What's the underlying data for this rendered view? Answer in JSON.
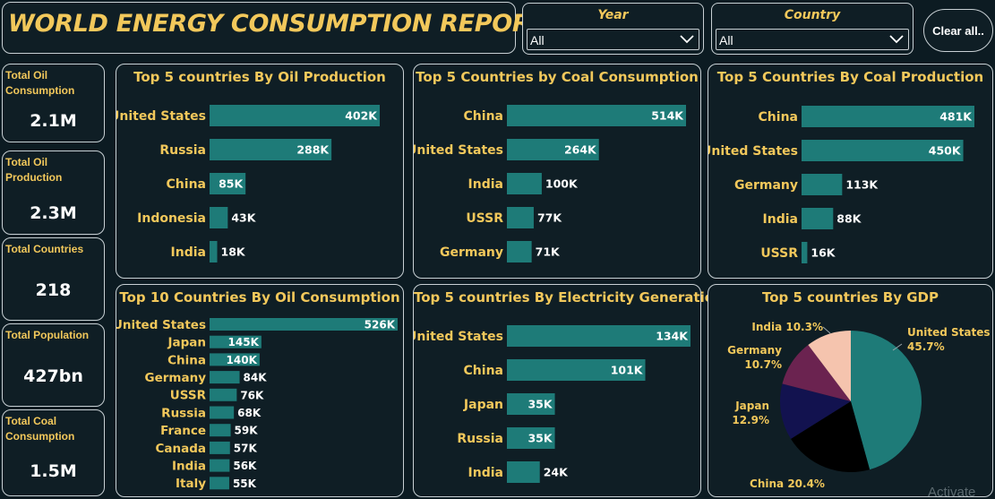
{
  "header": {
    "title": "WORLD ENERGY CONSUMPTION REPORT"
  },
  "filters": {
    "year": {
      "label": "Year",
      "value": "All"
    },
    "country": {
      "label": "Country",
      "value": "All"
    },
    "clear_label": "Clear all.."
  },
  "kpis": [
    {
      "label": "Total Oil Consumption",
      "value": "2.1M"
    },
    {
      "label": "Total Oil Production",
      "value": "2.3M"
    },
    {
      "label": "Total Countries",
      "value": "218"
    },
    {
      "label": "Total Population",
      "value": "427bn"
    },
    {
      "label": "Total Coal Consumption",
      "value": "1.5M"
    }
  ],
  "colors": {
    "bar": "#1e7b78",
    "accent": "#f2c85b",
    "card_border": "#c8d0d4"
  },
  "watermark": "Activate",
  "chart_data": [
    {
      "type": "bar",
      "title": "Top 5 countries By Oil Production",
      "categories": [
        "United States",
        "Russia",
        "China",
        "Indonesia",
        "India"
      ],
      "values": [
        402,
        288,
        85,
        43,
        18
      ],
      "labels": [
        "402K",
        "288K",
        "85K",
        "43K",
        "18K"
      ],
      "max": 402
    },
    {
      "type": "bar",
      "title": "Top 5 Countries by Coal Consumption",
      "categories": [
        "China",
        "United States",
        "India",
        "USSR",
        "Germany"
      ],
      "values": [
        514,
        264,
        100,
        77,
        71
      ],
      "labels": [
        "514K",
        "264K",
        "100K",
        "77K",
        "71K"
      ],
      "max": 514
    },
    {
      "type": "bar",
      "title": "Top 5 Countries By Coal Production",
      "categories": [
        "China",
        "United States",
        "Germany",
        "India",
        "USSR"
      ],
      "values": [
        481,
        450,
        113,
        88,
        16
      ],
      "labels": [
        "481K",
        "450K",
        "113K",
        "88K",
        "16K"
      ],
      "max": 481
    },
    {
      "type": "bar",
      "title": "Top 10 Countries By Oil Consumption",
      "categories": [
        "United States",
        "Japan",
        "China",
        "Germany",
        "USSR",
        "Russia",
        "France",
        "Canada",
        "India",
        "Italy"
      ],
      "values": [
        526,
        145,
        140,
        84,
        76,
        68,
        59,
        57,
        56,
        55
      ],
      "labels": [
        "526K",
        "145K",
        "140K",
        "84K",
        "76K",
        "68K",
        "59K",
        "57K",
        "56K",
        "55K"
      ],
      "max": 526
    },
    {
      "type": "bar",
      "title": "Top 5 countries By Electricity Generation",
      "categories": [
        "United States",
        "China",
        "Japan",
        "Russia",
        "India"
      ],
      "values": [
        134,
        101,
        35,
        35,
        24
      ],
      "labels": [
        "134K",
        "101K",
        "35K",
        "35K",
        "24K"
      ],
      "max": 134
    },
    {
      "type": "pie",
      "title": "Top 5 countries By GDP",
      "slices": [
        {
          "name": "United States",
          "value": 45.7,
          "label": "45.7%",
          "color": "#1e7b78"
        },
        {
          "name": "China",
          "value": 20.4,
          "label": "20.4%",
          "color": "#000000"
        },
        {
          "name": "Japan",
          "value": 12.9,
          "label": "12.9%",
          "color": "#12124f"
        },
        {
          "name": "Germany",
          "value": 10.7,
          "label": "10.7%",
          "color": "#6b2350"
        },
        {
          "name": "India",
          "value": 10.3,
          "label": "10.3%",
          "color": "#f5c4ae"
        }
      ]
    }
  ]
}
